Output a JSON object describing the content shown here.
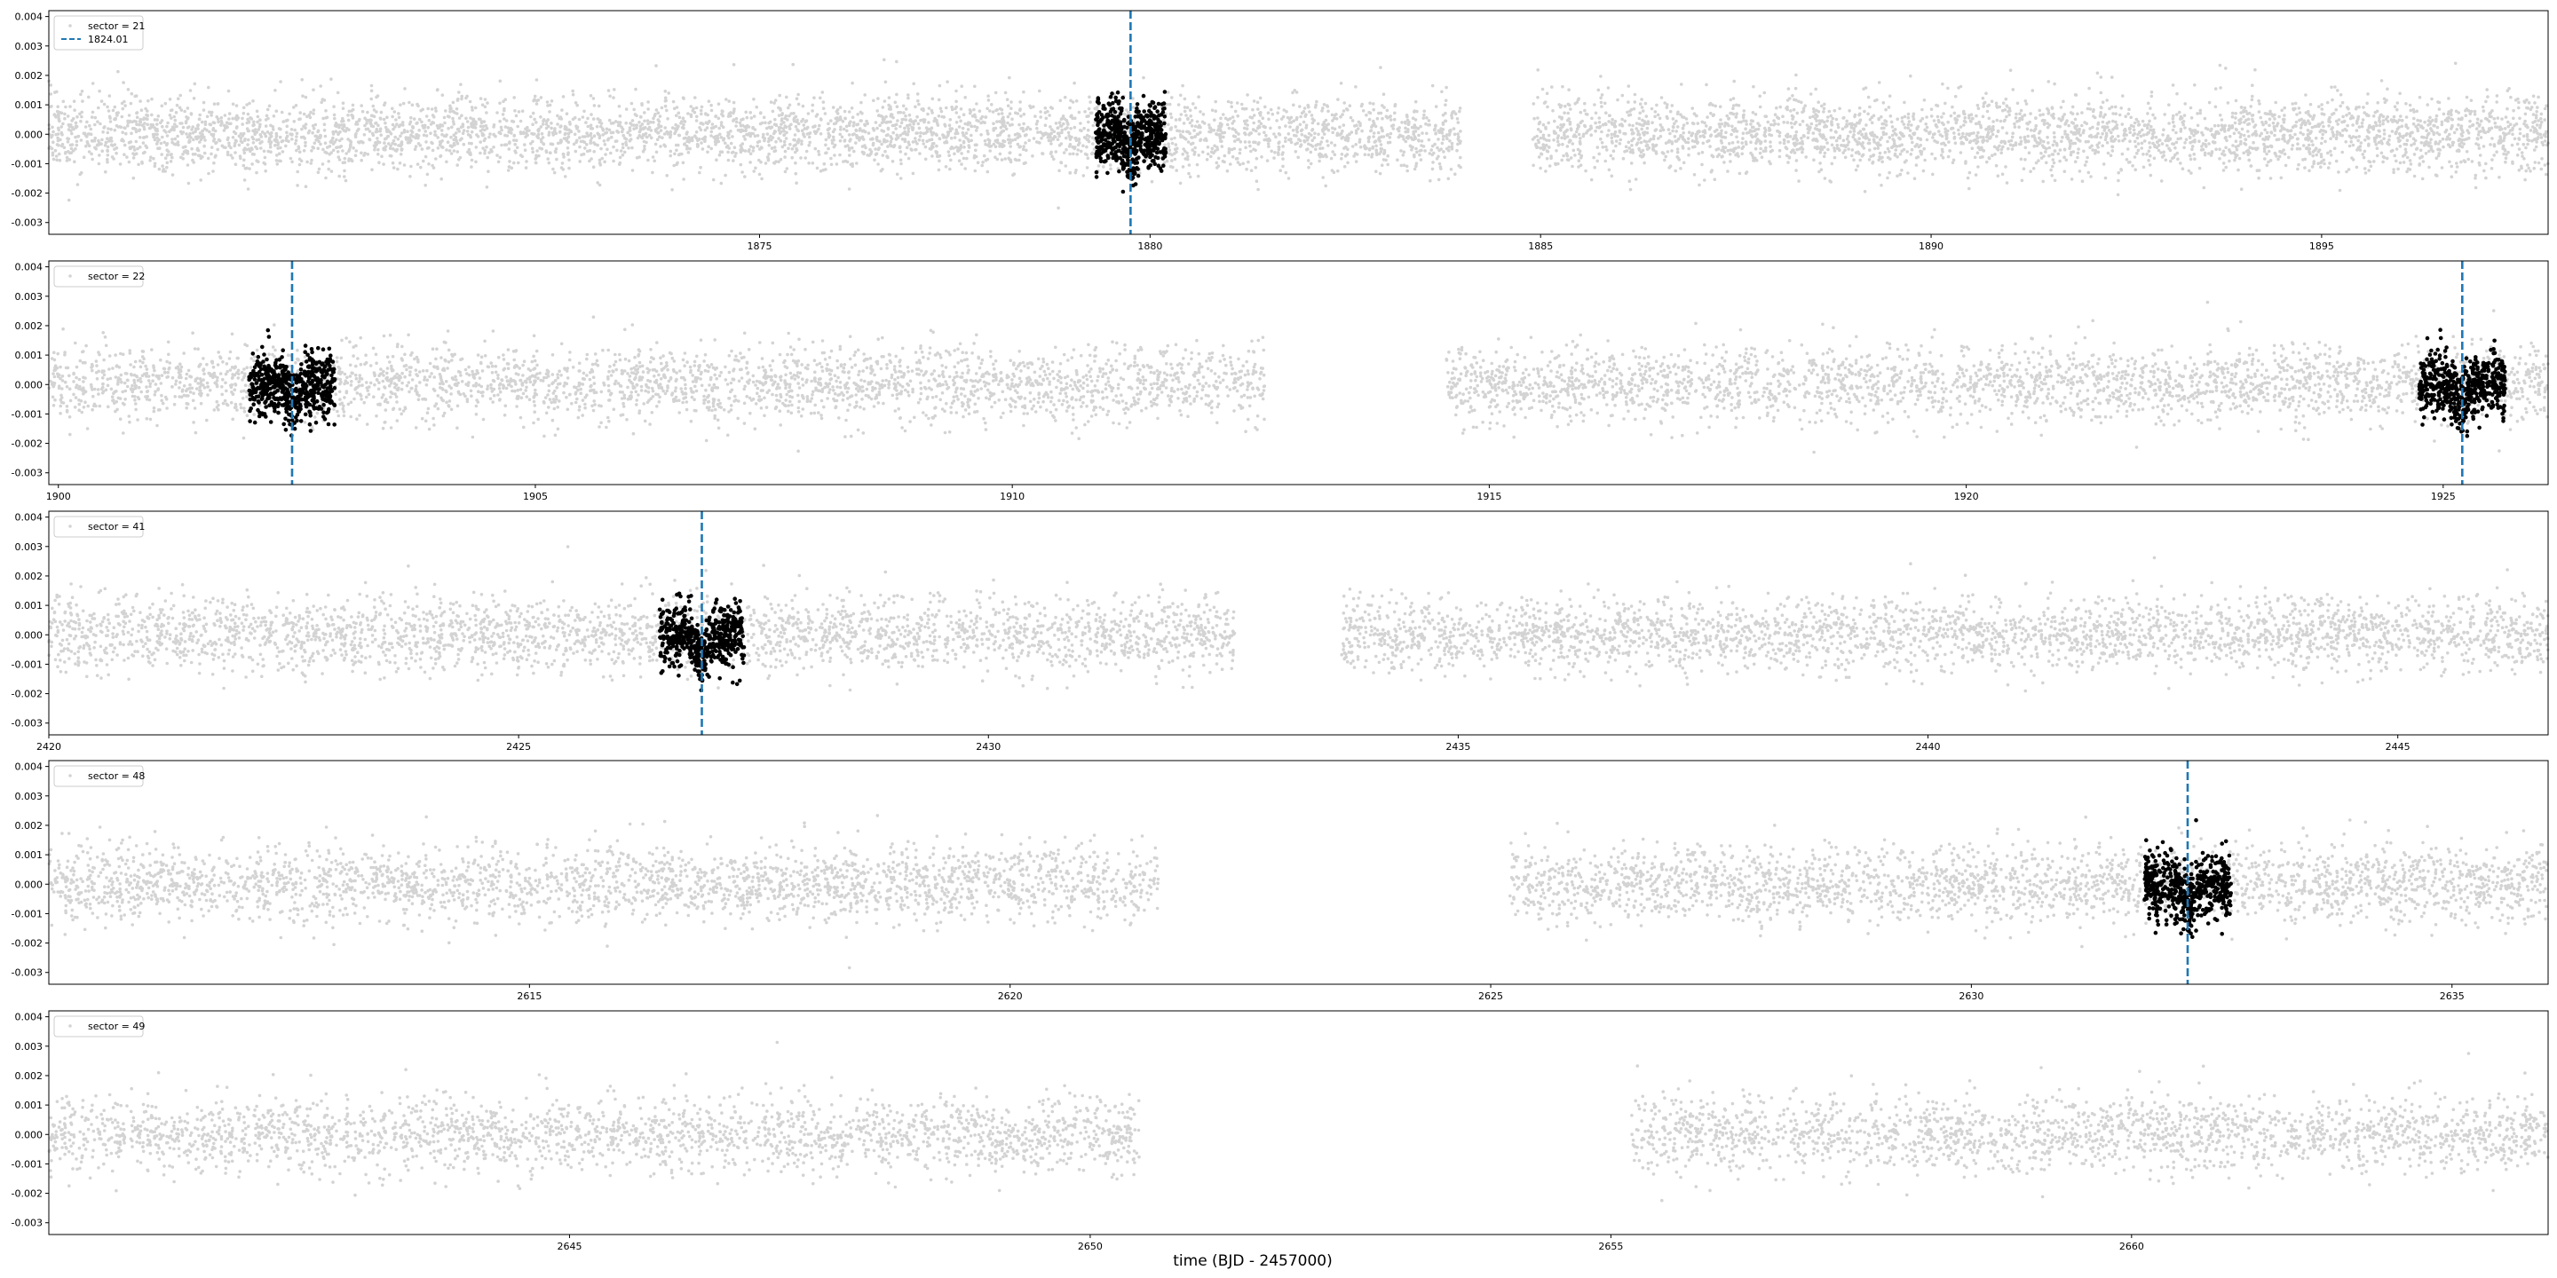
{
  "figure": {
    "xlabel": "time (BJD - 2457000)"
  },
  "chart_data": [
    {
      "type": "scatter",
      "xlim": [
        1865.9,
        1897.9
      ],
      "ylim": [
        -0.0034,
        0.0042
      ],
      "yticks": [
        -0.003,
        -0.002,
        -0.001,
        0.0,
        0.001,
        0.002,
        0.003,
        0.004
      ],
      "xticks": [
        1875,
        1880,
        1885,
        1890,
        1895
      ],
      "legend": [
        {
          "kind": "points",
          "label": "sector = 21"
        },
        {
          "kind": "dashed-line",
          "label": "1824.01"
        }
      ],
      "legend_position": "upper-left",
      "segments": [
        [
          1865.9,
          1883.98
        ],
        [
          1884.9,
          1897.9
        ]
      ],
      "transits": [
        {
          "t0": 1879.75,
          "halfwidth": 0.45,
          "depth": 0.0008
        }
      ],
      "vlines": [
        1879.75
      ],
      "colors": {
        "background_points": "#d3d3d3",
        "transit_points": "#000000",
        "vline": "#1f77b4"
      }
    },
    {
      "type": "scatter",
      "xlim": [
        1899.9,
        1926.1
      ],
      "ylim": [
        -0.0034,
        0.0042
      ],
      "yticks": [
        -0.003,
        -0.002,
        -0.001,
        0.0,
        0.001,
        0.002,
        0.003,
        0.004
      ],
      "xticks": [
        1900,
        1905,
        1910,
        1915,
        1920,
        1925
      ],
      "legend": [
        {
          "kind": "points",
          "label": "sector = 22"
        }
      ],
      "legend_position": "upper-left",
      "segments": [
        [
          1899.9,
          1912.65
        ],
        [
          1914.55,
          1926.1
        ]
      ],
      "transits": [
        {
          "t0": 1902.45,
          "halfwidth": 0.45,
          "depth": 0.0008
        },
        {
          "t0": 1925.2,
          "halfwidth": 0.45,
          "depth": 0.0008
        }
      ],
      "vlines": [
        1902.45,
        1925.2
      ],
      "colors": {
        "background_points": "#d3d3d3",
        "transit_points": "#000000",
        "vline": "#1f77b4"
      }
    },
    {
      "type": "scatter",
      "xlim": [
        2420.0,
        2446.6
      ],
      "ylim": [
        -0.0034,
        0.0042
      ],
      "yticks": [
        -0.003,
        -0.002,
        -0.001,
        0.0,
        0.001,
        0.002,
        0.003,
        0.004
      ],
      "xticks": [
        2420,
        2425,
        2430,
        2435,
        2440,
        2445
      ],
      "legend": [
        {
          "kind": "points",
          "label": "sector = 41"
        }
      ],
      "legend_position": "upper-left",
      "segments": [
        [
          2420.0,
          2432.62
        ],
        [
          2433.75,
          2446.6
        ]
      ],
      "transits": [
        {
          "t0": 2426.95,
          "halfwidth": 0.45,
          "depth": 0.0008
        }
      ],
      "vlines": [
        2426.95
      ],
      "colors": {
        "background_points": "#d3d3d3",
        "transit_points": "#000000",
        "vline": "#1f77b4"
      }
    },
    {
      "type": "scatter",
      "xlim": [
        2610.0,
        2636.0
      ],
      "ylim": [
        -0.0034,
        0.0042
      ],
      "yticks": [
        -0.003,
        -0.002,
        -0.001,
        0.0,
        0.001,
        0.002,
        0.003,
        0.004
      ],
      "xticks": [
        2615,
        2620,
        2625,
        2630,
        2635
      ],
      "legend": [
        {
          "kind": "points",
          "label": "sector = 48"
        }
      ],
      "legend_position": "upper-left",
      "segments": [
        [
          2610.0,
          2621.55
        ],
        [
          2625.2,
          2636.0
        ]
      ],
      "transits": [
        {
          "t0": 2632.25,
          "halfwidth": 0.45,
          "depth": 0.0008
        }
      ],
      "vlines": [
        2632.25
      ],
      "colors": {
        "background_points": "#d3d3d3",
        "transit_points": "#000000",
        "vline": "#1f77b4"
      }
    },
    {
      "type": "scatter",
      "xlim": [
        2640.0,
        2664.0
      ],
      "ylim": [
        -0.0034,
        0.0042
      ],
      "yticks": [
        -0.003,
        -0.002,
        -0.001,
        0.0,
        0.001,
        0.002,
        0.003,
        0.004
      ],
      "xticks": [
        2645,
        2650,
        2655,
        2660
      ],
      "legend": [
        {
          "kind": "points",
          "label": "sector = 49"
        }
      ],
      "legend_position": "upper-left",
      "segments": [
        [
          2640.0,
          2650.47
        ],
        [
          2655.2,
          2664.0
        ]
      ],
      "transits": [],
      "vlines": [],
      "colors": {
        "background_points": "#d3d3d3",
        "transit_points": "#000000",
        "vline": "#1f77b4"
      }
    }
  ]
}
